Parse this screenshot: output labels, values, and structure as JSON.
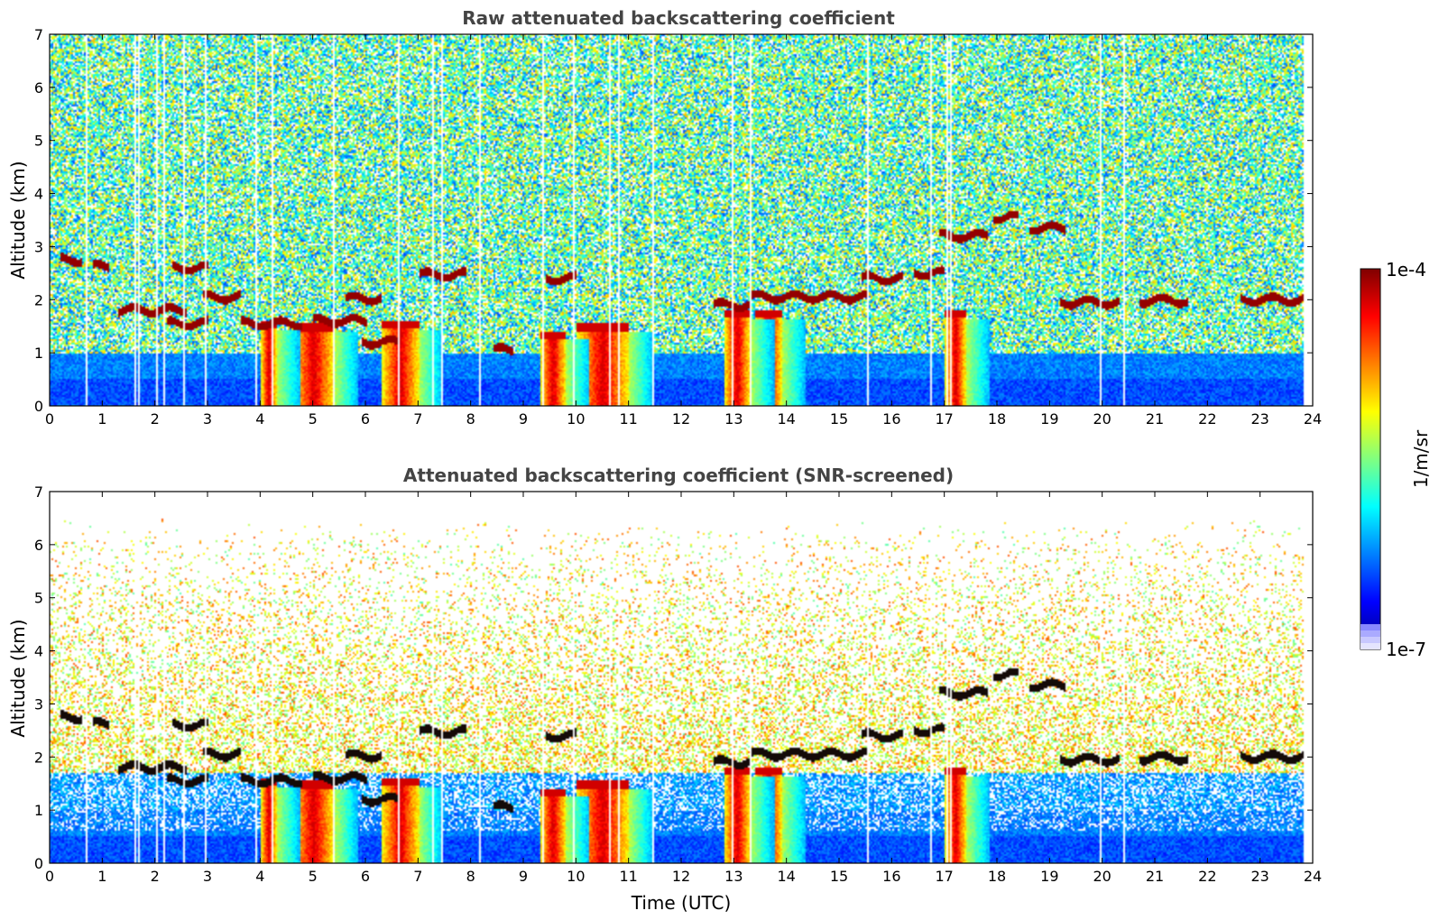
{
  "chart_data": [
    {
      "type": "heatmap",
      "title": "Raw attenuated backscattering coefficient",
      "xlabel": "",
      "ylabel": "Altitude (km)",
      "xlim": [
        0,
        24
      ],
      "ylim": [
        0,
        7
      ],
      "xticks": [
        "0",
        "1",
        "2",
        "3",
        "4",
        "5",
        "6",
        "7",
        "8",
        "9",
        "10",
        "11",
        "12",
        "13",
        "14",
        "15",
        "16",
        "17",
        "18",
        "19",
        "20",
        "21",
        "22",
        "23",
        "24"
      ],
      "yticks": [
        "0",
        "1",
        "2",
        "3",
        "4",
        "5",
        "6",
        "7"
      ],
      "screened": false,
      "data_end_time": 23.8,
      "cloud_layers": [
        {
          "t_start": 0.2,
          "t_end": 0.6,
          "alt": 2.75
        },
        {
          "t_start": 0.8,
          "t_end": 1.1,
          "alt": 2.62
        },
        {
          "t_start": 1.3,
          "t_end": 2.6,
          "alt": 1.8
        },
        {
          "t_start": 2.3,
          "t_end": 3.0,
          "alt": 2.6
        },
        {
          "t_start": 2.9,
          "t_end": 3.6,
          "alt": 2.05
        },
        {
          "t_start": 2.2,
          "t_end": 3.0,
          "alt": 1.55
        },
        {
          "t_start": 3.6,
          "t_end": 4.8,
          "alt": 1.55
        },
        {
          "t_start": 5.0,
          "t_end": 6.0,
          "alt": 1.6
        },
        {
          "t_start": 5.6,
          "t_end": 6.3,
          "alt": 2.02
        },
        {
          "t_start": 5.9,
          "t_end": 6.6,
          "alt": 1.2
        },
        {
          "t_start": 7.0,
          "t_end": 7.9,
          "alt": 2.47
        },
        {
          "t_start": 8.4,
          "t_end": 8.8,
          "alt": 1.05
        },
        {
          "t_start": 9.4,
          "t_end": 10.0,
          "alt": 2.4
        },
        {
          "t_start": 12.6,
          "t_end": 13.3,
          "alt": 1.9
        },
        {
          "t_start": 13.3,
          "t_end": 15.5,
          "alt": 2.05
        },
        {
          "t_start": 15.4,
          "t_end": 16.2,
          "alt": 2.4
        },
        {
          "t_start": 16.4,
          "t_end": 17.0,
          "alt": 2.5
        },
        {
          "t_start": 16.9,
          "t_end": 17.8,
          "alt": 3.2
        },
        {
          "t_start": 17.9,
          "t_end": 18.4,
          "alt": 3.55
        },
        {
          "t_start": 18.6,
          "t_end": 19.3,
          "alt": 3.35
        },
        {
          "t_start": 19.2,
          "t_end": 20.3,
          "alt": 1.95
        },
        {
          "t_start": 20.7,
          "t_end": 21.6,
          "alt": 1.98
        },
        {
          "t_start": 22.6,
          "t_end": 23.8,
          "alt": 2.0
        }
      ],
      "precip_shafts": [
        {
          "t_start": 4.0,
          "t_end": 4.3,
          "top": 1.6
        },
        {
          "t_start": 4.6,
          "t_end": 5.4,
          "top": 1.55
        },
        {
          "t_start": 6.3,
          "t_end": 7.0,
          "top": 1.6
        },
        {
          "t_start": 9.3,
          "t_end": 9.8,
          "top": 1.4
        },
        {
          "t_start": 10.0,
          "t_end": 11.0,
          "top": 1.55
        },
        {
          "t_start": 12.8,
          "t_end": 13.3,
          "top": 1.8
        },
        {
          "t_start": 13.4,
          "t_end": 13.9,
          "top": 1.8
        },
        {
          "t_start": 17.0,
          "t_end": 17.4,
          "top": 1.8
        }
      ]
    },
    {
      "type": "heatmap",
      "title": "Attenuated backscattering coefficient (SNR-screened)",
      "xlabel": "Time (UTC)",
      "ylabel": "Altitude (km)",
      "xlim": [
        0,
        24
      ],
      "ylim": [
        0,
        7
      ],
      "xticks": [
        "0",
        "1",
        "2",
        "3",
        "4",
        "5",
        "6",
        "7",
        "8",
        "9",
        "10",
        "11",
        "12",
        "13",
        "14",
        "15",
        "16",
        "17",
        "18",
        "19",
        "20",
        "21",
        "22",
        "23",
        "24"
      ],
      "yticks": [
        "0",
        "1",
        "2",
        "3",
        "4",
        "5",
        "6",
        "7"
      ],
      "screened": true,
      "data_end_time": 23.8,
      "cloud_layers": "same as raw panel (saturated values shown in black)",
      "precip_shafts": "same as raw panel"
    }
  ],
  "colorbar": {
    "min_label": "1e-7",
    "max_label": "1e-4",
    "label": "1/m/sr",
    "colormap": "jet",
    "colors": [
      "#000080",
      "#0000ff",
      "#0080ff",
      "#00ffff",
      "#80ff80",
      "#ffff00",
      "#ff8000",
      "#ff0000",
      "#800000"
    ]
  }
}
